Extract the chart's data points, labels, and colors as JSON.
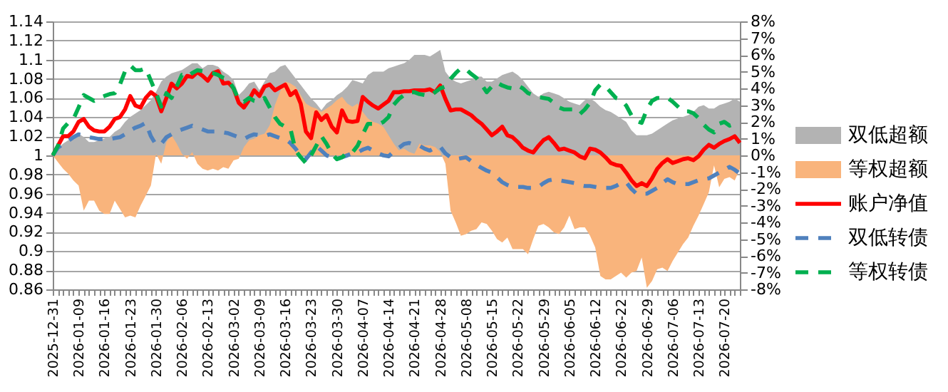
{
  "chart_data": {
    "type": "line",
    "categories": [
      "2025-12-31",
      null,
      null,
      null,
      null,
      "2026-01-09",
      null,
      null,
      null,
      null,
      "2026-01-16",
      null,
      null,
      null,
      null,
      "2026-01-23",
      null,
      null,
      null,
      null,
      "2026-01-30",
      null,
      null,
      null,
      null,
      "2026-02-06",
      null,
      null,
      null,
      null,
      "2026-02-13",
      null,
      null,
      null,
      null,
      "2026-03-02",
      null,
      null,
      null,
      null,
      "2026-03-09",
      null,
      null,
      null,
      null,
      "2026-03-16",
      null,
      null,
      null,
      null,
      "2026-03-23",
      null,
      null,
      null,
      null,
      "2026-03-30",
      null,
      null,
      null,
      null,
      "2026-04-07",
      null,
      null,
      null,
      null,
      "2026-04-14",
      null,
      null,
      null,
      null,
      "2026-04-21",
      null,
      null,
      null,
      null,
      "2026-04-28",
      null,
      null,
      null,
      null,
      "2026-05-08",
      null,
      null,
      null,
      null,
      "2026-05-15",
      null,
      null,
      null,
      null,
      "2026-05-22",
      null,
      null,
      null,
      null,
      "2026-05-29",
      null,
      null,
      null,
      null,
      "2026-06-05",
      null,
      null,
      null,
      null,
      "2026-06-12",
      null,
      null,
      null,
      null,
      "2026-06-22",
      null,
      null,
      null,
      null,
      "2026-06-29",
      null,
      null,
      null,
      null,
      "2026-07-06",
      null,
      null,
      null,
      null,
      "2026-07-13",
      null,
      null,
      null,
      null,
      "2026-07-20",
      null,
      null,
      null
    ],
    "ylim": [
      0.86,
      1.14
    ],
    "yticks": [
      0.86,
      0.88,
      0.9,
      0.92,
      0.94,
      0.96,
      0.98,
      1,
      1.02,
      1.04,
      1.06,
      1.08,
      1.1,
      1.12,
      1.14
    ],
    "y2lim": [
      -8,
      8
    ],
    "y2ticks": [
      {
        "value": -8,
        "label": "-8%"
      },
      {
        "value": -7,
        "label": "-7%"
      },
      {
        "value": -6,
        "label": "-6%"
      },
      {
        "value": -5,
        "label": "-5%"
      },
      {
        "value": -4,
        "label": "-4%"
      },
      {
        "value": -3,
        "label": "-3%"
      },
      {
        "value": -2,
        "label": "-2%"
      },
      {
        "value": -1,
        "label": "-1%"
      },
      {
        "value": 0,
        "label": "0%"
      },
      {
        "value": 1,
        "label": "1%"
      },
      {
        "value": 2,
        "label": "2%"
      },
      {
        "value": 3,
        "label": "3%"
      },
      {
        "value": 4,
        "label": "4%"
      },
      {
        "value": 5,
        "label": "5%"
      },
      {
        "value": 6,
        "label": "6%"
      },
      {
        "value": 7,
        "label": "7%"
      },
      {
        "value": 8,
        "label": "8%"
      }
    ],
    "grid": "y",
    "legend": "right",
    "marker": "none",
    "series": [
      {
        "name": "双低超额",
        "type": "area",
        "axis": "y2",
        "color": "#b3b3b3",
        "values": [
          0,
          0.4,
          0.7,
          0.9,
          1.1,
          1.3,
          1.1,
          0.8,
          0.8,
          0.9,
          1.0,
          1.1,
          1.4,
          1.6,
          2.0,
          2.3,
          2.5,
          2.7,
          3.0,
          3.3,
          3.8,
          4.4,
          4.7,
          4.9,
          5.0,
          5.1,
          5.3,
          5.5,
          5.5,
          5.2,
          5.4,
          5.4,
          5.3,
          5.0,
          4.8,
          4.5,
          3.6,
          3.9,
          4.3,
          4.4,
          3.9,
          4.4,
          4.9,
          5.0,
          5.3,
          5.4,
          5.0,
          4.6,
          4.2,
          3.8,
          3.4,
          3.1,
          2.7,
          3.1,
          3.3,
          3.6,
          3.8,
          4.1,
          4.5,
          4.4,
          4.3,
          4.8,
          5.0,
          5.0,
          5.0,
          5.2,
          5.3,
          5.4,
          5.5,
          5.7,
          6.0,
          6.0,
          6.0,
          5.9,
          6.1,
          6.3,
          5.0,
          4.6,
          4.4,
          4.3,
          4.4,
          4.5,
          4.7,
          4.7,
          4.4,
          4.4,
          4.6,
          4.8,
          4.9,
          5.0,
          4.8,
          4.5,
          4.1,
          3.7,
          3.5,
          3.7,
          3.8,
          3.7,
          3.6,
          3.4,
          3.2,
          3.1,
          3.0,
          3.3,
          3.4,
          3.2,
          2.9,
          2.7,
          2.6,
          2.4,
          2.2,
          2.0,
          1.5,
          1.2,
          1.2,
          1.2,
          1.3,
          1.5,
          1.7,
          1.9,
          2.1,
          2.2,
          2.3,
          2.4,
          2.6,
          2.9,
          3.0,
          2.8,
          2.8,
          3.0,
          3.1,
          3.2,
          3.4,
          3.2
        ]
      },
      {
        "name": "等权超额",
        "type": "area",
        "axis": "y2",
        "color": "#f9b47c",
        "values": [
          0,
          -0.4,
          -0.8,
          -1.1,
          -1.5,
          -1.8,
          -3.3,
          -2.7,
          -2.7,
          -3.3,
          -3.5,
          -3.5,
          -2.7,
          -3.2,
          -3.7,
          -3.6,
          -3.7,
          -3.0,
          -2.4,
          -1.8,
          0.1,
          -0.5,
          0.8,
          1.2,
          0.7,
          0.1,
          -0.2,
          0.2,
          -0.5,
          -0.8,
          -0.9,
          -0.8,
          -0.9,
          -0.7,
          -0.8,
          -0.3,
          -0.2,
          0.5,
          0.9,
          1.0,
          1.2,
          1.3,
          1.8,
          3.0,
          3.8,
          4.4,
          4.3,
          4.1,
          3.6,
          3.1,
          2.9,
          2.8,
          2.6,
          2.8,
          3.0,
          3.3,
          3.5,
          3.1,
          2.9,
          3.1,
          2.6,
          2.2,
          2.0,
          1.9,
          1.7,
          1.2,
          0.7,
          0.3,
          0.4,
          0.2,
          0.1,
          0.7,
          0.6,
          0.6,
          0.5,
          0.2,
          -0.5,
          -3.3,
          -4.0,
          -4.8,
          -4.7,
          -4.5,
          -4.4,
          -4.0,
          -4.1,
          -4.5,
          -5.0,
          -5.2,
          -4.9,
          -5.6,
          -5.6,
          -5.6,
          -5.9,
          -5.0,
          -4.2,
          -4.1,
          -4.3,
          -4.6,
          -4.7,
          -4.3,
          -3.6,
          -4.4,
          -4.3,
          -4.3,
          -4.8,
          -5.5,
          -7.2,
          -7.4,
          -7.4,
          -7.2,
          -7.0,
          -7.3,
          -7.0,
          -6.9,
          -6.1,
          -7.9,
          -7.5,
          -6.8,
          -6.7,
          -6.9,
          -6.3,
          -5.8,
          -5.3,
          -4.9,
          -4.2,
          -3.6,
          -2.9,
          -2.2,
          -0.6,
          -1.9,
          -1.4,
          -1.3,
          -1.5,
          -0.8
        ]
      },
      {
        "name": "账户净值",
        "color": "#ff0000",
        "line_style": "solid",
        "values": [
          1.0,
          1.01,
          1.02,
          1.02,
          1.025,
          1.035,
          1.038,
          1.03,
          1.026,
          1.025,
          1.025,
          1.03,
          1.038,
          1.04,
          1.048,
          1.062,
          1.052,
          1.05,
          1.06,
          1.066,
          1.062,
          1.046,
          1.06,
          1.075,
          1.07,
          1.075,
          1.083,
          1.082,
          1.087,
          1.083,
          1.078,
          1.086,
          1.088,
          1.075,
          1.076,
          1.07,
          1.055,
          1.05,
          1.058,
          1.068,
          1.062,
          1.072,
          1.074,
          1.068,
          1.071,
          1.074,
          1.063,
          1.067,
          1.054,
          1.025,
          1.018,
          1.045,
          1.037,
          1.042,
          1.03,
          1.024,
          1.047,
          1.036,
          1.035,
          1.036,
          1.061,
          1.056,
          1.052,
          1.049,
          1.053,
          1.057,
          1.066,
          1.066,
          1.067,
          1.067,
          1.068,
          1.068,
          1.068,
          1.069,
          1.066,
          1.073,
          1.059,
          1.047,
          1.048,
          1.048,
          1.045,
          1.042,
          1.037,
          1.033,
          1.027,
          1.021,
          1.025,
          1.03,
          1.021,
          1.019,
          1.014,
          1.008,
          1.005,
          1.003,
          1.01,
          1.016,
          1.019,
          1.013,
          1.006,
          1.007,
          1.005,
          1.003,
          0.999,
          0.997,
          1.007,
          1.006,
          1.003,
          0.998,
          0.992,
          0.99,
          0.989,
          0.982,
          0.974,
          0.968,
          0.971,
          0.968,
          0.976,
          0.986,
          0.992,
          0.996,
          0.992,
          0.994,
          0.996,
          0.997,
          0.995,
          0.999,
          1.006,
          1.011,
          1.008,
          1.012,
          1.015,
          1.017,
          1.02,
          1.013
        ]
      },
      {
        "name": "双低转债",
        "color": "#4f81bd",
        "line_style": "dashed",
        "values": [
          1.0,
          1.008,
          1.012,
          1.015,
          1.019,
          1.022,
          1.021,
          1.019,
          1.018,
          1.017,
          1.017,
          1.017,
          1.018,
          1.019,
          1.022,
          1.026,
          1.029,
          1.031,
          1.034,
          1.02,
          1.011,
          1.012,
          1.019,
          1.022,
          1.025,
          1.027,
          1.029,
          1.031,
          1.029,
          1.027,
          1.025,
          1.025,
          1.025,
          1.024,
          1.023,
          1.021,
          1.019,
          1.017,
          1.02,
          1.022,
          1.021,
          1.02,
          1.022,
          1.02,
          1.018,
          1.017,
          1.013,
          1.007,
          1.0,
          0.996,
          1.003,
          1.01,
          1.005,
          1.0,
          0.998,
          0.996,
          0.998,
          1.0,
          1.002,
          1.003,
          1.006,
          1.008,
          1.005,
          1.002,
          1.0,
          0.999,
          1.004,
          1.008,
          1.012,
          1.013,
          1.011,
          1.01,
          1.007,
          1.005,
          1.008,
          1.009,
          1.002,
          0.998,
          0.996,
          0.997,
          0.998,
          0.994,
          0.99,
          0.987,
          0.984,
          0.982,
          0.977,
          0.972,
          0.969,
          0.967,
          0.967,
          0.967,
          0.966,
          0.966,
          0.967,
          0.971,
          0.974,
          0.975,
          0.974,
          0.973,
          0.972,
          0.971,
          0.969,
          0.968,
          0.968,
          0.967,
          0.966,
          0.966,
          0.966,
          0.968,
          0.971,
          0.972,
          0.965,
          0.96,
          0.96,
          0.96,
          0.963,
          0.966,
          0.971,
          0.975,
          0.972,
          0.97,
          0.97,
          0.97,
          0.972,
          0.974,
          0.975,
          0.976,
          0.979,
          0.982,
          0.985,
          0.988,
          0.985,
          0.981
        ]
      },
      {
        "name": "等权转债",
        "color": "#00b050",
        "line_style": "dashed",
        "values": [
          1.0,
          1.01,
          1.028,
          1.034,
          1.038,
          1.05,
          1.063,
          1.06,
          1.057,
          1.06,
          1.062,
          1.064,
          1.065,
          1.074,
          1.088,
          1.094,
          1.089,
          1.089,
          1.091,
          1.078,
          1.065,
          1.051,
          1.065,
          1.06,
          1.072,
          1.084,
          1.082,
          1.086,
          1.089,
          1.088,
          1.087,
          1.086,
          1.084,
          1.081,
          1.079,
          1.07,
          1.058,
          1.056,
          1.06,
          1.057,
          1.056,
          1.06,
          1.05,
          1.04,
          1.033,
          1.03,
          1.028,
          1.005,
          0.998,
          0.992,
          1.0,
          1.01,
          1.02,
          1.012,
          1.002,
          0.996,
          0.998,
          1.003,
          1.003,
          1.01,
          1.022,
          1.033,
          1.033,
          1.032,
          1.035,
          1.04,
          1.053,
          1.059,
          1.063,
          1.066,
          1.066,
          1.064,
          1.063,
          1.062,
          1.066,
          1.07,
          1.072,
          1.08,
          1.086,
          1.091,
          1.09,
          1.085,
          1.081,
          1.074,
          1.066,
          1.072,
          1.076,
          1.073,
          1.071,
          1.07,
          1.073,
          1.07,
          1.065,
          1.063,
          1.061,
          1.06,
          1.059,
          1.055,
          1.05,
          1.048,
          1.048,
          1.048,
          1.043,
          1.048,
          1.055,
          1.068,
          1.074,
          1.072,
          1.066,
          1.06,
          1.058,
          1.052,
          1.042,
          1.036,
          1.034,
          1.048,
          1.057,
          1.06,
          1.06,
          1.06,
          1.056,
          1.051,
          1.046,
          1.046,
          1.044,
          1.039,
          1.032,
          1.027,
          1.024,
          1.033,
          1.035,
          1.031,
          1.033,
          1.035
        ]
      }
    ]
  }
}
